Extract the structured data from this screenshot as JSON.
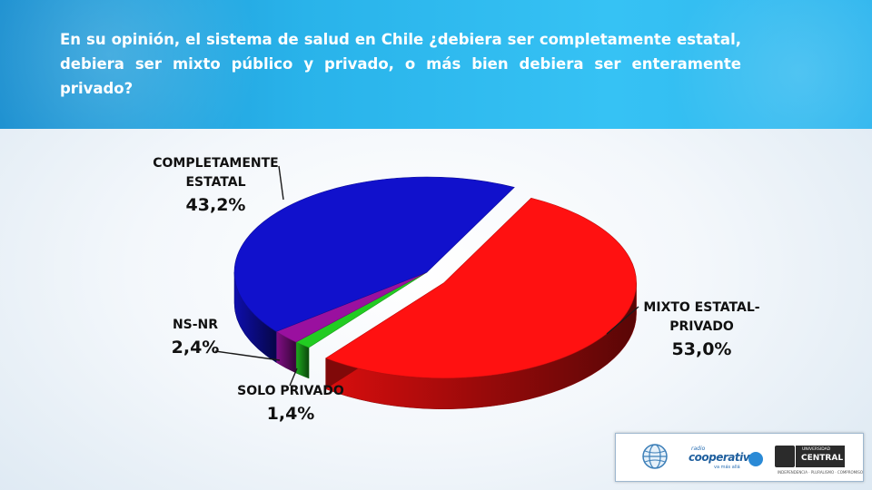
{
  "header": {
    "question": "En su opinión, el sistema de salud en Chile ¿debiera ser completamente estatal, debiera ser mixto público y privado, o más bien debiera ser enteramente privado?"
  },
  "chart_data": {
    "type": "pie",
    "title": "",
    "three_d": true,
    "slices": [
      {
        "label": "MIXTO ESTATAL-PRIVADO",
        "label_lines": [
          "MIXTO ESTATAL-",
          "PRIVADO"
        ],
        "value": 53.0,
        "value_label": "53,0%",
        "color": "#ff1111",
        "exploded": true
      },
      {
        "label": "SOLO PRIVADO",
        "label_lines": [
          "SOLO PRIVADO"
        ],
        "value": 1.4,
        "value_label": "1,4%",
        "color": "#22cc22",
        "exploded": false
      },
      {
        "label": "NS-NR",
        "label_lines": [
          "NS-NR"
        ],
        "value": 2.4,
        "value_label": "2,4%",
        "color": "#9a109f",
        "exploded": false
      },
      {
        "label": "COMPLETAMENTE ESTATAL",
        "label_lines": [
          "COMPLETAMENTE",
          "ESTATAL"
        ],
        "value": 43.2,
        "value_label": "43,2%",
        "color": "#1111cc",
        "exploded": false
      }
    ]
  },
  "logos": {
    "coop_small": "radio",
    "coop_name": "cooperativa",
    "coop_tagline": "va más allá",
    "uc_small": "UNIVERSIDAD",
    "uc_name": "CENTRAL",
    "uc_line": "INDEPENDENCIA · PLURALISMO · COMPROMISO"
  }
}
